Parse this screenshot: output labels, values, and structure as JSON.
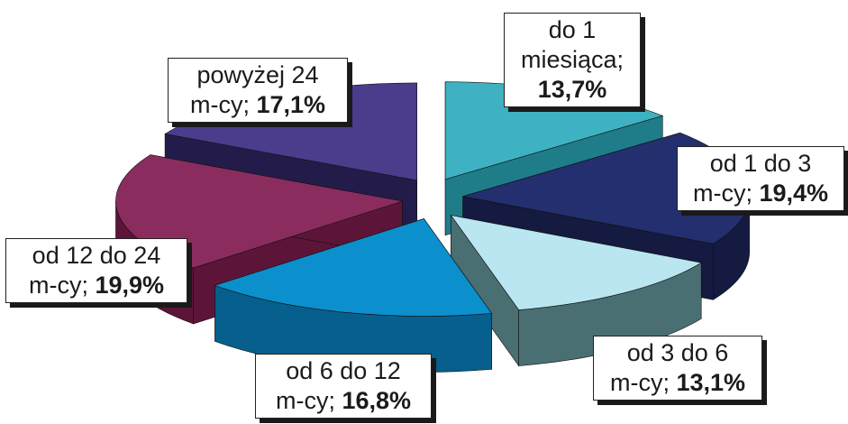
{
  "chart_data": {
    "type": "pie",
    "title": "",
    "slices": [
      {
        "line1": "do 1",
        "line2": "miesiąca;",
        "pct_text": "13,7%",
        "value": 13.7,
        "color": "#3eb2c2",
        "side": "#1f7d8a"
      },
      {
        "line1": "od 1 do 3",
        "line2": "m-cy;",
        "pct_text": "19,4%",
        "value": 19.4,
        "color": "#232f6e",
        "side": "#141a40"
      },
      {
        "line1": "od 3 do 6",
        "line2": "m-cy;",
        "pct_text": "13,1%",
        "value": 13.1,
        "color": "#b9e6f0",
        "side": "#4a6f72"
      },
      {
        "line1": "od 6 do 12",
        "line2": "m-cy;",
        "pct_text": "16,8%",
        "value": 16.8,
        "color": "#0c8fcd",
        "side": "#065f8c"
      },
      {
        "line1": "od 12 do 24",
        "line2": "m-cy;",
        "pct_text": "19,9%",
        "value": 19.9,
        "color": "#8b2c5e",
        "side": "#5c1538"
      },
      {
        "line1": "powyżej 24",
        "line2": "m-cy;",
        "pct_text": "17,1%",
        "value": 17.1,
        "color": "#4b3c8c",
        "side": "#231c4a"
      }
    ]
  }
}
